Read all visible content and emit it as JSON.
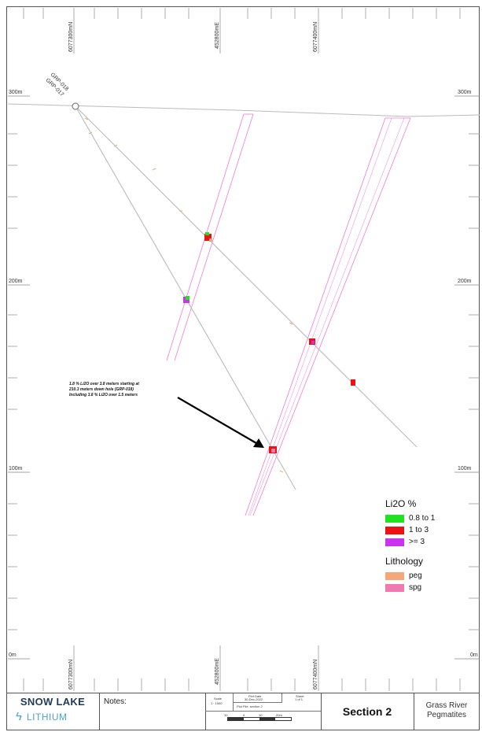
{
  "grid": {
    "elevations": [
      "300m",
      "200m",
      "100m",
      "0m"
    ],
    "northings_top": [
      "6077300mN",
      "452800mE",
      "6077400mN"
    ],
    "northings_bottom": [
      "6077300mN",
      "452800mE",
      "6077400mN"
    ]
  },
  "drill_hole_labels": [
    "GRP-018",
    "GRP-017"
  ],
  "annotation": [
    "1.8 % Li2O over 3.8 meters starting at",
    "210.3 meters down hole (GRP-018)",
    "Including 3.8 % Li2O over 1.5 meters"
  ],
  "legend": {
    "li2o_title": "Li2O %",
    "li2o_items": [
      {
        "label": "0.8 to 1",
        "color": "#22e022"
      },
      {
        "label": "1 to 3",
        "color": "#ee1111"
      },
      {
        "label": ">= 3",
        "color": "#cc33ee"
      }
    ],
    "lith_title": "Lithology",
    "lith_items": [
      {
        "label": "peg",
        "color": "#f4a77a"
      },
      {
        "label": "spg",
        "color": "#f07ab0"
      }
    ]
  },
  "titleblock": {
    "company": "SNOW LAKE",
    "company_sub": "LITHIUM",
    "notes_label": "Notes:",
    "scale_label": "Scale",
    "scale_value": "1 : 1500",
    "plot_date_label": "Plot Date",
    "plot_date_value": "30-Dec-2022",
    "sheet_label": "Sheet",
    "sheet_value": "1 of 1",
    "plot_file_label": "Plot File: section 2",
    "scale_bar_ticks": [
      "10",
      "0",
      "10",
      "20m"
    ],
    "section": "Section 2",
    "project_line1": "Grass River",
    "project_line2": "Pegmatites"
  }
}
